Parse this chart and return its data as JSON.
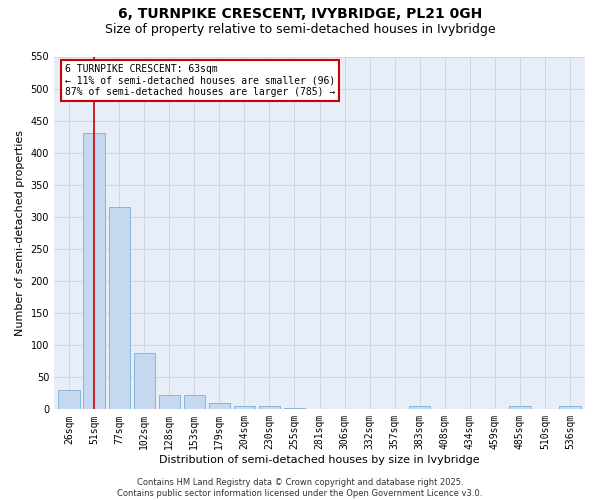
{
  "title": "6, TURNPIKE CRESCENT, IVYBRIDGE, PL21 0GH",
  "subtitle": "Size of property relative to semi-detached houses in Ivybridge",
  "xlabel": "Distribution of semi-detached houses by size in Ivybridge",
  "ylabel": "Number of semi-detached properties",
  "categories": [
    "26sqm",
    "51sqm",
    "77sqm",
    "102sqm",
    "128sqm",
    "153sqm",
    "179sqm",
    "204sqm",
    "230sqm",
    "255sqm",
    "281sqm",
    "306sqm",
    "332sqm",
    "357sqm",
    "383sqm",
    "408sqm",
    "434sqm",
    "459sqm",
    "485sqm",
    "510sqm",
    "536sqm"
  ],
  "values": [
    30,
    430,
    315,
    88,
    23,
    23,
    10,
    5,
    5,
    2,
    0,
    0,
    0,
    0,
    5,
    0,
    0,
    0,
    5,
    0,
    5
  ],
  "bar_color": "#c5d8ef",
  "bar_edge_color": "#7bafd4",
  "red_line_x": 1,
  "annotation_text": "6 TURNPIKE CRESCENT: 63sqm\n← 11% of semi-detached houses are smaller (96)\n87% of semi-detached houses are larger (785) →",
  "annotation_box_color": "#ffffff",
  "annotation_box_edge": "#cc0000",
  "red_line_color": "#cc0000",
  "grid_color": "#cdd5e8",
  "background_color": "#e8eef8",
  "ylim": [
    0,
    550
  ],
  "yticks": [
    0,
    50,
    100,
    150,
    200,
    250,
    300,
    350,
    400,
    450,
    500,
    550
  ],
  "footer": "Contains HM Land Registry data © Crown copyright and database right 2025.\nContains public sector information licensed under the Open Government Licence v3.0.",
  "title_fontsize": 10,
  "subtitle_fontsize": 9,
  "tick_fontsize": 7,
  "ylabel_fontsize": 8,
  "xlabel_fontsize": 8,
  "footer_fontsize": 6
}
